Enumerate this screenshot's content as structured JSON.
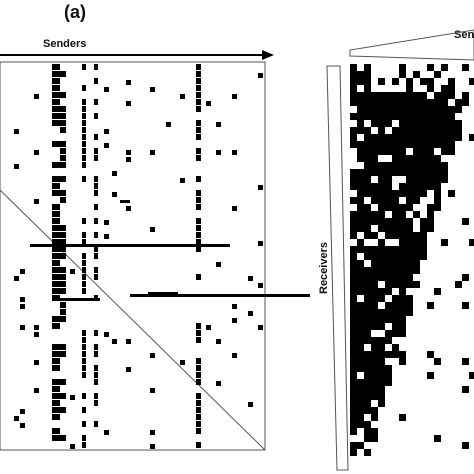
{
  "figure": {
    "panel_label": "(a)",
    "left_axis_label": "Senders",
    "right_top_label": "Sen",
    "right_side_label": "Receivers"
  },
  "colors": {
    "cell": "#000000",
    "frame": "#555555",
    "background": "#ffffff"
  }
}
